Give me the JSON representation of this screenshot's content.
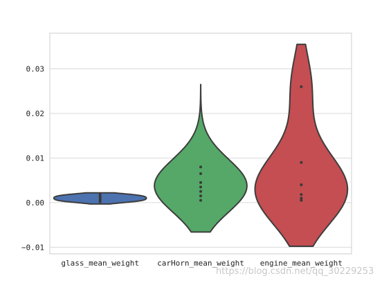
{
  "chart_data": {
    "type": "violin",
    "title": "",
    "xlabel": "",
    "ylabel": "",
    "categories": [
      "glass_mean_weight",
      "carHorn_mean_weight",
      "engine_mean_weight"
    ],
    "ylim": [
      -0.0115,
      0.038
    ],
    "yticks": [
      -0.01,
      0.0,
      0.01,
      0.02,
      0.03
    ],
    "ytick_labels": [
      "−0.01",
      "0.00",
      "0.01",
      "0.02",
      "0.03"
    ],
    "grid": "horizontal",
    "colors": [
      "#4c72b0",
      "#55a868",
      "#c44e52"
    ],
    "series": [
      {
        "category": "glass_mean_weight",
        "color": "#4c72b0",
        "extent": [
          -0.0003,
          0.0022
        ],
        "points": [
          0.0002,
          0.0006,
          0.001,
          0.0014,
          0.0018
        ]
      },
      {
        "category": "carHorn_mean_weight",
        "color": "#55a868",
        "extent": [
          -0.0066,
          0.0265
        ],
        "points": [
          0.0005,
          0.0015,
          0.0025,
          0.0035,
          0.0045,
          0.0065,
          0.008
        ]
      },
      {
        "category": "engine_mean_weight",
        "color": "#c44e52",
        "extent": [
          -0.0098,
          0.0355
        ],
        "points": [
          0.0005,
          0.001,
          0.0018,
          0.004,
          0.009,
          0.026
        ]
      }
    ]
  },
  "watermark": "https://blog.csdn.net/qq_30229253"
}
